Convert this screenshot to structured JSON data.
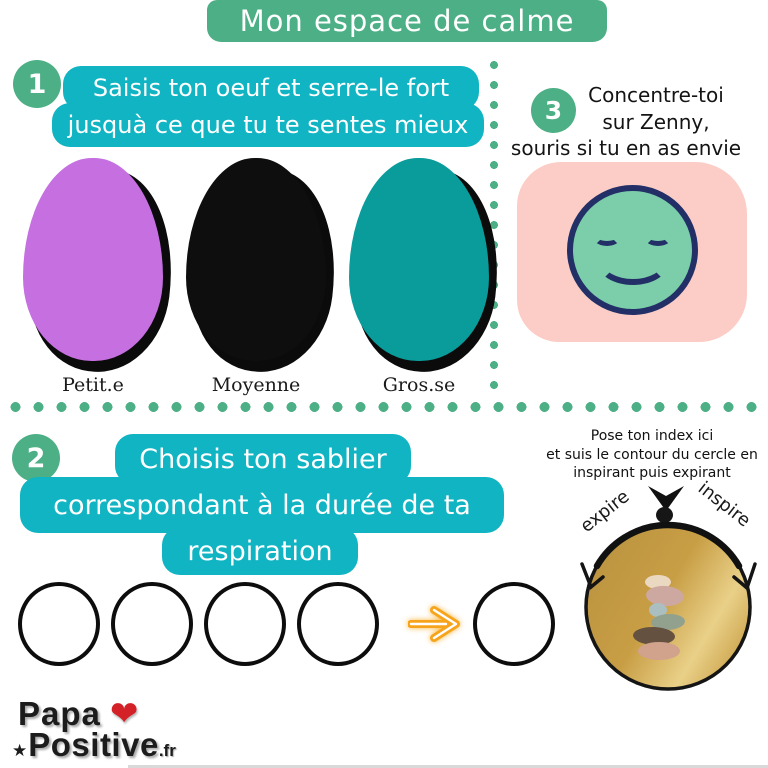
{
  "title": "Mon espace de calme",
  "step1": {
    "number": "1",
    "instruction": [
      "Saisis ton oeuf et serre-le fort",
      "jusquà ce que tu te sentes mieux"
    ],
    "eggs": [
      {
        "label": "Petit.e",
        "color": "#c56fe0"
      },
      {
        "label": "Moyenne",
        "color": "#0e0e0e"
      },
      {
        "label": "Gros.se",
        "color": "#0a9b9b"
      }
    ]
  },
  "step2": {
    "number": "2",
    "instruction": [
      "Choisis ton sablier",
      "correspondant à la durée de ta",
      "respiration"
    ],
    "circle_count": 5
  },
  "step3": {
    "number": "3",
    "instruction": [
      "Concentre-toi",
      "sur Zenny,",
      "souris si tu en as envie"
    ]
  },
  "breathing_exercise": {
    "instruction": [
      "Pose ton index ici",
      "et suis le contour du cercle en",
      "inspirant puis expirant"
    ],
    "label_left": "expire",
    "label_right": "inspire",
    "stone_colors": [
      "#ead8c1",
      "#cda8a0",
      "#abbfc0",
      "#91a18d",
      "#64513f",
      "#d1a28c"
    ]
  },
  "footer": {
    "brand_line1": "Papa",
    "brand_line2": "Positive",
    "brand_suffix": ".fr",
    "heart": "❤",
    "star": "★"
  },
  "colors": {
    "accent_green": "#4daf85",
    "bubble_teal": "#10b4c2",
    "blob_pink": "#fccdc6",
    "smiley_green": "#7ccda9",
    "smiley_outline": "#223067",
    "arrow_orange": "#f7a41d",
    "gold_dark": "#bb9440",
    "gold_mid": "#c89e45",
    "gold_light": "#e9d088",
    "heart_red": "#d42027"
  }
}
